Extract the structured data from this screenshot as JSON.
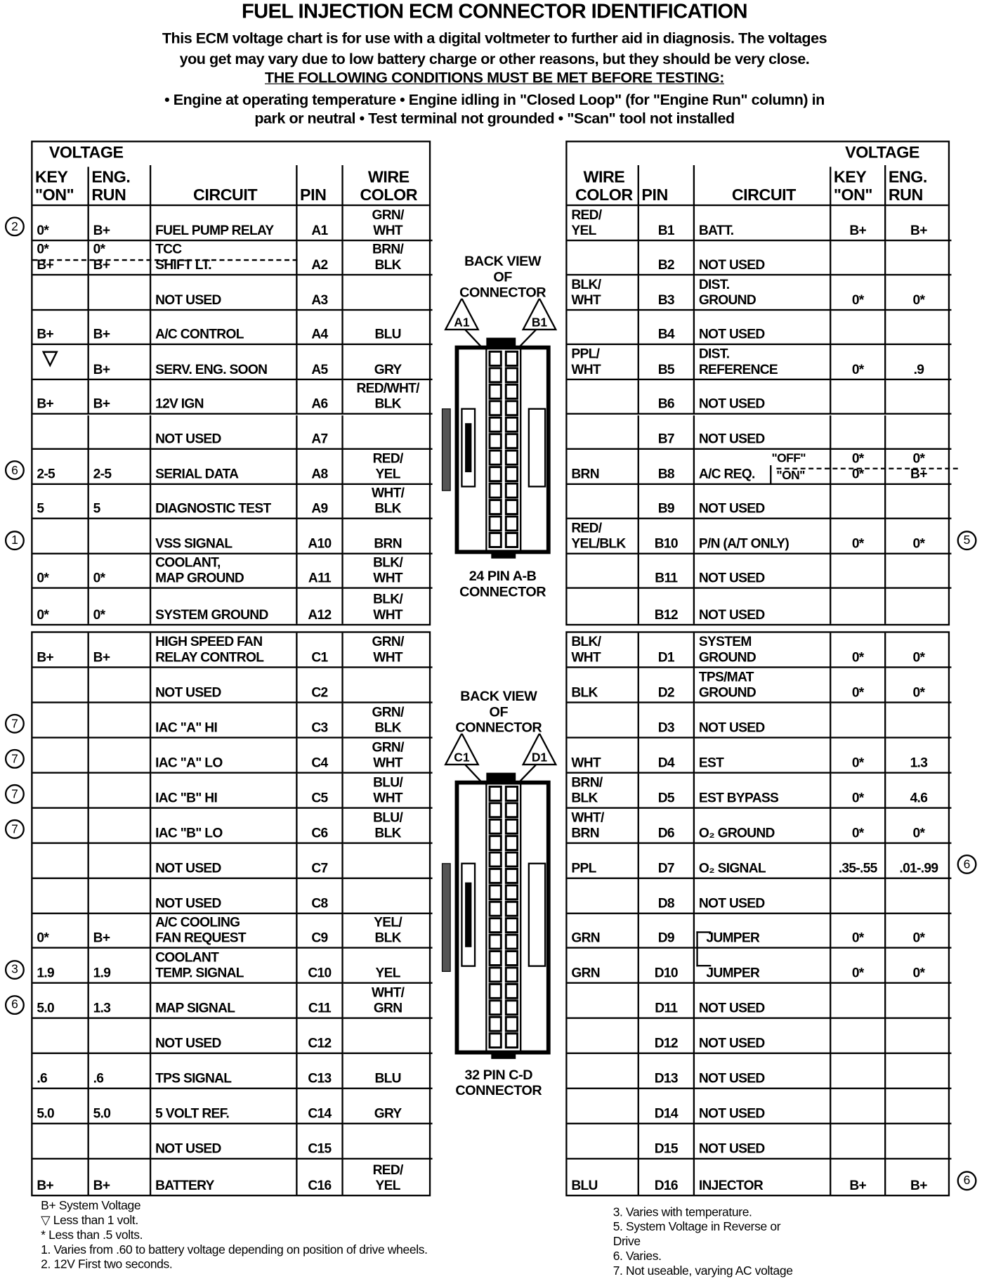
{
  "title": "FUEL INJECTION ECM CONNECTOR IDENTIFICATION",
  "intro": "This ECM voltage chart is for use with a digital voltmeter to further aid in diagnosis.  The voltages\nyou get may vary due to low battery charge or other reasons, but they should be very close.",
  "conditions_heading": "THE FOLLOWING CONDITIONS MUST BE MET BEFORE TESTING:",
  "conditions": "• Engine at operating temperature  • Engine idling in \"Closed Loop\" (for \"Engine Run\" column) in\npark or neutral  • Test terminal not grounded  • \"Scan\" tool not installed",
  "headers": {
    "voltage": "VOLTAGE",
    "key_on": "KEY\n\"ON\"",
    "eng_run": "ENG.\nRUN",
    "circuit": "CIRCUIT",
    "pin": "PIN",
    "wire_color": "WIRE\nCOLOR"
  },
  "connector_ab": {
    "top_label": "BACK VIEW\nOF\nCONNECTOR",
    "pin_left": "A1",
    "pin_right": "B1",
    "bottom_label": "24 PIN  A-B\nCONNECTOR"
  },
  "connector_cd": {
    "top_label": "BACK VIEW\nOF\nCONNECTOR",
    "pin_left": "C1",
    "pin_right": "D1",
    "bottom_label": "32 PIN C-D\nCONNECTOR"
  },
  "table_a": [
    {
      "key": "0*",
      "eng": "B+",
      "circuit": "FUEL PUMP RELAY",
      "pin": "A1",
      "wire": "GRN/\nWHT",
      "note": "2"
    },
    {
      "key": "0*\nB+",
      "eng": "0*\nB+",
      "circuit": "TCC\nSHIFT LT.",
      "pin": "A2",
      "wire": "BRN/\nBLK",
      "dashed": true
    },
    {
      "key": "",
      "eng": "",
      "circuit": "NOT USED",
      "pin": "A3",
      "wire": ""
    },
    {
      "key": "B+",
      "eng": "B+",
      "circuit": "A/C CONTROL",
      "pin": "A4",
      "wire": "BLU"
    },
    {
      "key": "▽",
      "eng": "B+",
      "circuit": "SERV.  ENG. SOON",
      "pin": "A5",
      "wire": "GRY"
    },
    {
      "key": "B+",
      "eng": "B+",
      "circuit": "12V IGN",
      "pin": "A6",
      "wire": "RED/WHT/\nBLK"
    },
    {
      "key": "",
      "eng": "",
      "circuit": "NOT USED",
      "pin": "A7",
      "wire": ""
    },
    {
      "key": "2-5",
      "eng": "2-5",
      "circuit": "SERIAL DATA",
      "pin": "A8",
      "wire": "RED/\nYEL",
      "note": "6"
    },
    {
      "key": "5",
      "eng": "5",
      "circuit": "DIAGNOSTIC TEST",
      "pin": "A9",
      "wire": "WHT/\nBLK"
    },
    {
      "key": "",
      "eng": "",
      "circuit": "VSS SIGNAL",
      "pin": "A10",
      "wire": "BRN",
      "note": "1"
    },
    {
      "key": "0*",
      "eng": "0*",
      "circuit": "COOLANT,\nMAP GROUND",
      "pin": "A11",
      "wire": "BLK/\nWHT"
    },
    {
      "key": "0*",
      "eng": "0*",
      "circuit": "SYSTEM GROUND",
      "pin": "A12",
      "wire": "BLK/\nWHT"
    }
  ],
  "table_b": [
    {
      "wire": "RED/\nYEL",
      "pin": "B1",
      "circuit": "BATT.",
      "key": "B+",
      "eng": "B+"
    },
    {
      "wire": "",
      "pin": "B2",
      "circuit": "NOT USED",
      "key": "",
      "eng": ""
    },
    {
      "wire": "BLK/\nWHT",
      "pin": "B3",
      "circuit": "DIST.\nGROUND",
      "key": "0*",
      "eng": "0*"
    },
    {
      "wire": "",
      "pin": "B4",
      "circuit": "NOT USED",
      "key": "",
      "eng": ""
    },
    {
      "wire": "PPL/\nWHT",
      "pin": "B5",
      "circuit": "DIST.\nREFERENCE",
      "key": "0*",
      "eng": ".9"
    },
    {
      "wire": "",
      "pin": "B6",
      "circuit": "NOT USED",
      "key": "",
      "eng": ""
    },
    {
      "wire": "",
      "pin": "B7",
      "circuit": "NOT USED",
      "key": "",
      "eng": ""
    },
    {
      "wire": "BRN",
      "pin": "B8",
      "circuit": "A/C REQ.",
      "key": "0*\n0*",
      "eng": "0*\nB+",
      "states": [
        "\"OFF\"",
        "\"ON\""
      ],
      "dashed": true
    },
    {
      "wire": "",
      "pin": "B9",
      "circuit": "NOT USED",
      "key": "",
      "eng": ""
    },
    {
      "wire": "RED/\nYEL/BLK",
      "pin": "B10",
      "circuit": "P/N  (A/T ONLY)",
      "key": "0*",
      "eng": "0*",
      "note": "5"
    },
    {
      "wire": "",
      "pin": "B11",
      "circuit": "NOT USED",
      "key": "",
      "eng": ""
    },
    {
      "wire": "",
      "pin": "B12",
      "circuit": "NOT USED",
      "key": "",
      "eng": ""
    }
  ],
  "table_c": [
    {
      "key": "B+",
      "eng": "B+",
      "circuit": "HIGH SPEED FAN\nRELAY CONTROL",
      "pin": "C1",
      "wire": "GRN/\nWHT"
    },
    {
      "key": "",
      "eng": "",
      "circuit": "NOT USED",
      "pin": "C2",
      "wire": ""
    },
    {
      "key": "",
      "eng": "",
      "circuit": "IAC \"A\" HI",
      "pin": "C3",
      "wire": "GRN/\nBLK",
      "note": "7"
    },
    {
      "key": "",
      "eng": "",
      "circuit": "IAC \"A\" LO",
      "pin": "C4",
      "wire": "GRN/\nWHT",
      "note": "7"
    },
    {
      "key": "",
      "eng": "",
      "circuit": "IAC \"B\" HI",
      "pin": "C5",
      "wire": "BLU/\nWHT",
      "note": "7"
    },
    {
      "key": "",
      "eng": "",
      "circuit": "IAC \"B\" LO",
      "pin": "C6",
      "wire": "BLU/\nBLK",
      "note": "7"
    },
    {
      "key": "",
      "eng": "",
      "circuit": "NOT USED",
      "pin": "C7",
      "wire": ""
    },
    {
      "key": "",
      "eng": "",
      "circuit": "NOT USED",
      "pin": "C8",
      "wire": ""
    },
    {
      "key": "0*",
      "eng": "B+",
      "circuit": "A/C COOLING\nFAN REQUEST",
      "pin": "C9",
      "wire": "YEL/\nBLK"
    },
    {
      "key": "1.9",
      "eng": "1.9",
      "circuit": "COOLANT\nTEMP. SIGNAL",
      "pin": "C10",
      "wire": "YEL",
      "note": "3"
    },
    {
      "key": "5.0",
      "eng": "1.3",
      "circuit": "MAP SIGNAL",
      "pin": "C11",
      "wire": "WHT/\nGRN",
      "note": "6"
    },
    {
      "key": "",
      "eng": "",
      "circuit": "NOT USED",
      "pin": "C12",
      "wire": ""
    },
    {
      "key": ".6",
      "eng": ".6",
      "circuit": "TPS SIGNAL",
      "pin": "C13",
      "wire": "BLU"
    },
    {
      "key": "5.0",
      "eng": "5.0",
      "circuit": "5 VOLT REF.",
      "pin": "C14",
      "wire": "GRY"
    },
    {
      "key": "",
      "eng": "",
      "circuit": "NOT USED",
      "pin": "C15",
      "wire": ""
    },
    {
      "key": "B+",
      "eng": "B+",
      "circuit": "BATTERY",
      "pin": "C16",
      "wire": "RED/\nYEL"
    }
  ],
  "table_d": [
    {
      "wire": "BLK/\nWHT",
      "pin": "D1",
      "circuit": "SYSTEM\nGROUND",
      "key": "0*",
      "eng": "0*"
    },
    {
      "wire": "BLK",
      "pin": "D2",
      "circuit": "TPS/MAT\nGROUND",
      "key": "0*",
      "eng": "0*"
    },
    {
      "wire": "",
      "pin": "D3",
      "circuit": "NOT USED",
      "key": "",
      "eng": ""
    },
    {
      "wire": "WHT",
      "pin": "D4",
      "circuit": "EST",
      "key": "0*",
      "eng": "1.3"
    },
    {
      "wire": "BRN/\nBLK",
      "pin": "D5",
      "circuit": "EST BYPASS",
      "key": "0*",
      "eng": "4.6"
    },
    {
      "wire": "WHT/\nBRN",
      "pin": "D6",
      "circuit": "O₂ GROUND",
      "key": "0*",
      "eng": "0*"
    },
    {
      "wire": "PPL",
      "pin": "D7",
      "circuit": "O₂ SIGNAL",
      "key": ".35-.55",
      "eng": ".01-.99",
      "note": "6"
    },
    {
      "wire": "",
      "pin": "D8",
      "circuit": "NOT USED",
      "key": "",
      "eng": ""
    },
    {
      "wire": "GRN",
      "pin": "D9",
      "circuit": "JUMPER",
      "key": "0*",
      "eng": "0*"
    },
    {
      "wire": "GRN",
      "pin": "D10",
      "circuit": "JUMPER",
      "key": "0*",
      "eng": "0*"
    },
    {
      "wire": "",
      "pin": "D11",
      "circuit": "NOT USED",
      "key": "",
      "eng": ""
    },
    {
      "wire": "",
      "pin": "D12",
      "circuit": "NOT USED",
      "key": "",
      "eng": ""
    },
    {
      "wire": "",
      "pin": "D13",
      "circuit": "NOT USED",
      "key": "",
      "eng": ""
    },
    {
      "wire": "",
      "pin": "D14",
      "circuit": "NOT USED",
      "key": "",
      "eng": ""
    },
    {
      "wire": "",
      "pin": "D15",
      "circuit": "NOT USED",
      "key": "",
      "eng": ""
    },
    {
      "wire": "BLU",
      "pin": "D16",
      "circuit": "INJECTOR",
      "key": "B+",
      "eng": "B+",
      "note": "6"
    }
  ],
  "footnotes_left": "B+ System Voltage\n▽  Less than 1 volt.\n*   Less than .5 volts.\n1.  Varies from .60 to battery voltage depending on position of drive wheels.\n2.  12V First two seconds.",
  "footnotes_right": "3.  Varies with temperature.\n5.  System Voltage in Reverse or\n     Drive\n6.  Varies.\n7.  Not useable, varying AC voltage"
}
